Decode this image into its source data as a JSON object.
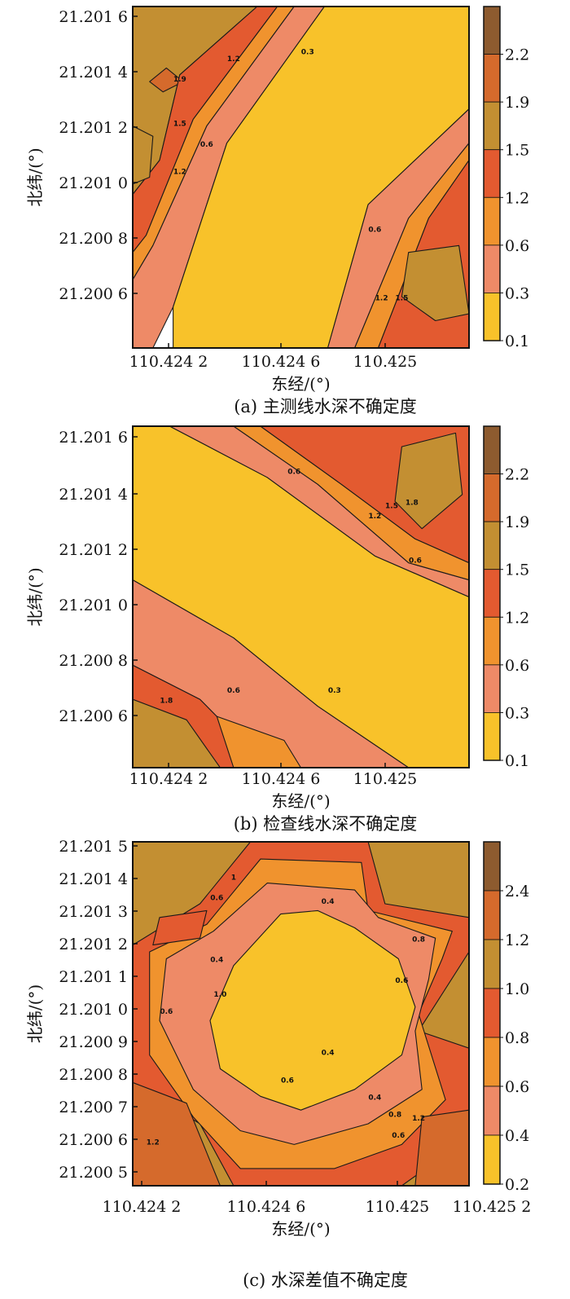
{
  "colors": {
    "levels": [
      "#f8c22a",
      "#ee8a67",
      "#f0932e",
      "#e35a30",
      "#c38f32",
      "#d56a2c",
      "#8d5b2f"
    ],
    "frame": "#111111",
    "contour_line": "#1a1a1a"
  },
  "panels": [
    {
      "id": "a",
      "caption": "(a) 主测线水深不确定度",
      "xlabel": "东经/(°)",
      "ylabel": "北纬/(°)",
      "xticks": [
        "110.424 2",
        "110.424 6",
        "110.425"
      ],
      "yticks": [
        "21.201 6",
        "21.201 4",
        "21.201 2",
        "21.201 0",
        "21.200 8",
        "21.200 6"
      ],
      "colorbar_ticks": [
        "2.2",
        "1.9",
        "1.5",
        "1.2",
        "0.6",
        "0.3",
        "0.1"
      ],
      "contour_labels": [
        "1.2",
        "0.3",
        "1.9",
        "1.5",
        "0.6",
        "1.2",
        "0.6",
        "1.2",
        "1.5"
      ]
    },
    {
      "id": "b",
      "caption": "(b) 检查线水深不确定度",
      "xlabel": "东经/(°)",
      "ylabel": "北纬/(°)",
      "xticks": [
        "110.424 2",
        "110.424 6",
        "110.425"
      ],
      "yticks": [
        "21.201 6",
        "21.201 4",
        "21.201 2",
        "21.201 0",
        "21.200 8",
        "21.200 6"
      ],
      "colorbar_ticks": [
        "2.2",
        "1.9",
        "1.5",
        "1.2",
        "0.6",
        "0.3",
        "0.1"
      ],
      "contour_labels": [
        "0.6",
        "1.2",
        "1.5",
        "1.8",
        "0.6",
        "0.3",
        "0.6",
        "1.8"
      ]
    },
    {
      "id": "c",
      "caption": "(c) 水深差值不确定度",
      "xlabel": "东经/(°)",
      "ylabel": "北纬/(°)",
      "xticks": [
        "110.424 2",
        "110.424 6",
        "110.425",
        "110.425 2"
      ],
      "yticks": [
        "21.201 5",
        "21.201 4",
        "21.201 3",
        "21.201 2",
        "21.201 1",
        "21.201 0",
        "21.200 9",
        "21.200 8",
        "21.200 7",
        "21.200 6",
        "21.200 5"
      ],
      "colorbar_ticks": [
        "2.4",
        "1.2",
        "1.0",
        "0.8",
        "0.6",
        "0.4",
        "0.2"
      ],
      "contour_labels": [
        "1",
        "0.6",
        "0.4",
        "0.8",
        "0.6",
        "0.4",
        "1.0",
        "0.6",
        "0.4",
        "0.4",
        "0.6",
        "1.2",
        "0.8",
        "1.2",
        "0.6"
      ]
    }
  ],
  "chart_data": [
    {
      "type": "heatmap",
      "title": "(a) 主测线水深不确定度",
      "xlabel": "东经/(°)",
      "ylabel": "北纬/(°)",
      "xlim": [
        110.4241,
        110.42522
      ],
      "ylim": [
        21.20034,
        21.20166
      ],
      "colorbar_levels": [
        0.1,
        0.3,
        0.6,
        1.2,
        1.5,
        1.9,
        2.2
      ],
      "pattern": "diagonal low-uncertainty band from lower-left to upper-right (values ~0.1), increasing to 1.2–2.2 toward the upper-left and lower-right corners"
    },
    {
      "type": "heatmap",
      "title": "(b) 检查线水深不确定度",
      "xlabel": "东经/(°)",
      "ylabel": "北纬/(°)",
      "xlim": [
        110.4241,
        110.42522
      ],
      "ylim": [
        21.20034,
        21.20166
      ],
      "colorbar_levels": [
        0.1,
        0.3,
        0.6,
        1.2,
        1.5,
        1.9,
        2.2
      ],
      "pattern": "diagonal low-uncertainty band from upper-left to lower-right (values ~0.1), increasing to 1.2–2.2 toward the upper-right and lower-left corners"
    },
    {
      "type": "heatmap",
      "title": "(c) 水深差值不确定度",
      "xlabel": "东经/(°)",
      "ylabel": "北纬/(°)",
      "xlim": [
        110.4241,
        110.4252
      ],
      "ylim": [
        21.20047,
        21.20152
      ],
      "colorbar_levels": [
        0.2,
        0.4,
        0.6,
        0.8,
        1.0,
        1.2,
        2.4
      ],
      "pattern": "central low-uncertainty region (values ~0.2) surrounded by rings of 0.4, 0.6, 0.8, rising to 1.0–2.4 at the corners"
    }
  ]
}
